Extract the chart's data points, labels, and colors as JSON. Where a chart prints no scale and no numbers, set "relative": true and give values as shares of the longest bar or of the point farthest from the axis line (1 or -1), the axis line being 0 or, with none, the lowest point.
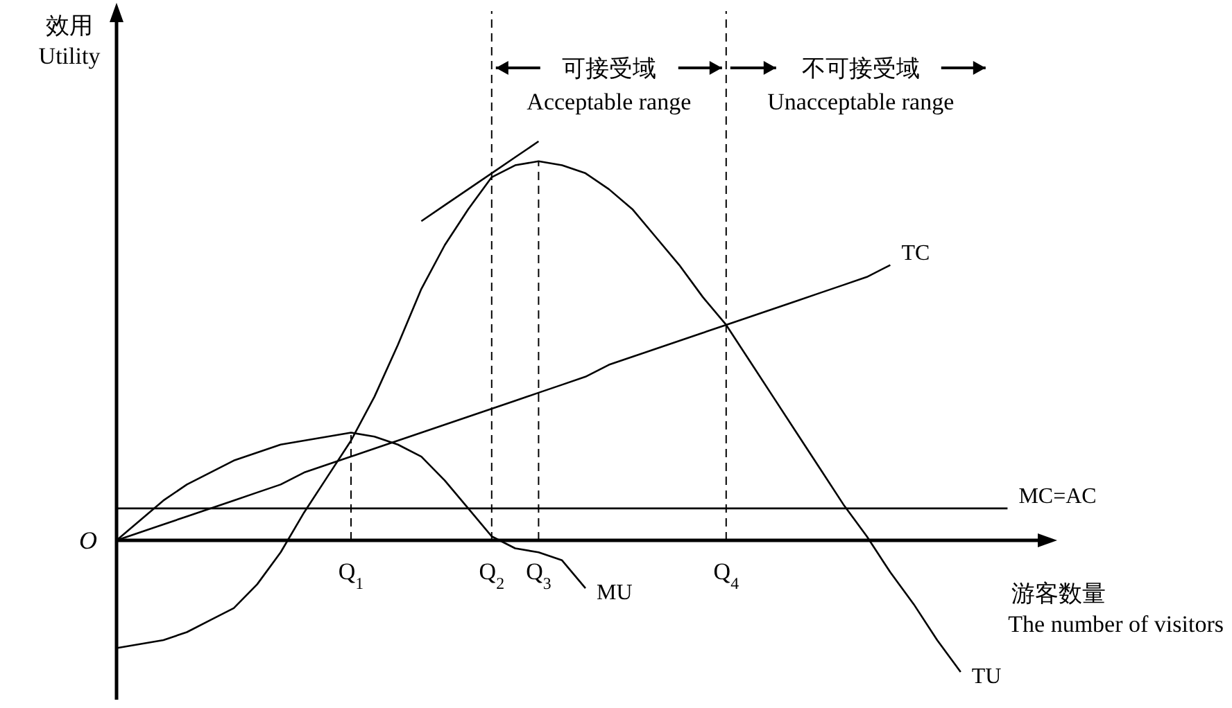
{
  "chart_data": {
    "type": "line",
    "relative": true,
    "xlabel": "游客数量 The number of visitors",
    "ylabel": "效用 Utility",
    "categories": [
      null,
      null,
      null,
      null,
      null,
      null,
      null,
      null,
      null,
      null,
      "Q$_{1}$",
      null,
      null,
      null,
      null,
      null,
      "Q$_{2}$",
      null,
      "Q$_{3}$",
      null,
      null,
      null,
      null,
      null,
      null,
      null,
      "Q$_{4}$",
      null,
      null,
      null,
      null,
      null,
      null,
      null,
      null,
      null,
      null,
      null,
      null,
      null
    ],
    "series": [
      {
        "name": "TU",
        "color": "#000000",
        "values": [
          -0.27,
          -0.26,
          -0.25,
          -0.23,
          -0.2,
          -0.17,
          -0.11,
          -0.03,
          0.07,
          0.16,
          0.25,
          0.36,
          0.49,
          0.63,
          0.74,
          0.83,
          0.91,
          0.94,
          0.95,
          0.94,
          0.92,
          0.88,
          0.83,
          0.76,
          0.69,
          0.61,
          0.54,
          0.45,
          0.36,
          0.27,
          0.18,
          0.09,
          0.01,
          -0.08,
          -0.16,
          -0.25,
          -0.33,
          null,
          null,
          null
        ]
      },
      {
        "name": "MU",
        "color": "#000000",
        "values": [
          0,
          0.05,
          0.1,
          0.14,
          0.17,
          0.2,
          0.22,
          0.24,
          0.25,
          0.26,
          0.27,
          0.26,
          0.24,
          0.21,
          0.15,
          0.08,
          0.01,
          -0.02,
          -0.03,
          -0.05,
          -0.12,
          null,
          null,
          null,
          null,
          null,
          null,
          null,
          null,
          null,
          null,
          null,
          null,
          null,
          null,
          null,
          null,
          null,
          null,
          null
        ]
      },
      {
        "name": "TC",
        "color": "#000000",
        "values": [
          0,
          0.02,
          0.04,
          0.06,
          0.08,
          0.1,
          0.12,
          0.14,
          0.17,
          0.19,
          0.21,
          0.23,
          0.25,
          0.27,
          0.29,
          0.31,
          0.33,
          0.35,
          0.37,
          0.39,
          0.41,
          0.44,
          0.46,
          0.48,
          0.5,
          0.52,
          0.54,
          0.56,
          0.58,
          0.6,
          0.62,
          0.64,
          0.66,
          0.69,
          null,
          null,
          null,
          null,
          null,
          null
        ]
      },
      {
        "name": "MC=AC",
        "color": "#000000",
        "values": [
          0.08,
          0.08,
          0.08,
          0.08,
          0.08,
          0.08,
          0.08,
          0.08,
          0.08,
          0.08,
          0.08,
          0.08,
          0.08,
          0.08,
          0.08,
          0.08,
          0.08,
          0.08,
          0.08,
          0.08,
          0.08,
          0.08,
          0.08,
          0.08,
          0.08,
          0.08,
          0.08,
          0.08,
          0.08,
          0.08,
          0.08,
          0.08,
          0.08,
          0.08,
          0.08,
          0.08,
          0.08,
          0.08,
          0.08,
          null
        ]
      },
      {
        "color": "#000000",
        "values": [
          null,
          null,
          null,
          null,
          null,
          null,
          null,
          null,
          null,
          null,
          null,
          null,
          null,
          0.8,
          0.84,
          0.88,
          0.92,
          0.96,
          1,
          null,
          null,
          null,
          null,
          null,
          null,
          null,
          null,
          null,
          null,
          null,
          null,
          null,
          null,
          null,
          null,
          null,
          null,
          null,
          null,
          null
        ]
      }
    ],
    "ref_lines": [
      {
        "axis": "x",
        "value": "Q$_{1}$",
        "line_style": "dashed"
      },
      {
        "axis": "x",
        "value": "Q$_{2}$",
        "line_style": "dashed"
      },
      {
        "axis": "x",
        "value": "Q$_{3}$",
        "line_style": "dashed"
      },
      {
        "axis": "x",
        "value": "Q$_{4}$",
        "line_style": "dashed"
      }
    ],
    "annotations": [
      "可接受域",
      "Acceptable range",
      "不可接受域",
      "Unacceptable range",
      "O"
    ]
  }
}
